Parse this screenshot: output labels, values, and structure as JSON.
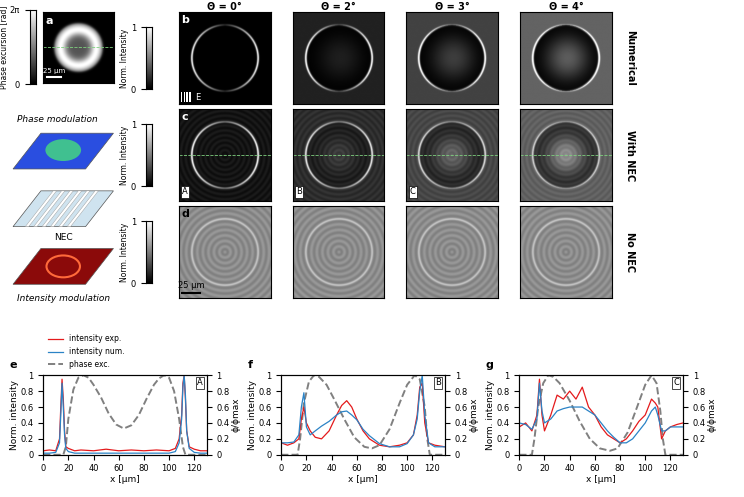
{
  "figure": {
    "panel_a": {
      "letter": "a",
      "colorbar_label": "Phase excursion [rad]",
      "colorbar_lim": [
        0,
        6.283
      ],
      "colorbar_ticks": [
        0,
        {
          "value": 6.283,
          "label": "2π"
        }
      ],
      "scale_bar": "25 µm"
    },
    "schematic": {
      "labels": [
        "Phase modulation",
        "NEC",
        "Intensity modulation"
      ]
    },
    "columns": [
      "Θ = 0°",
      "Θ = 2°",
      "Θ = 3°",
      "Θ = 4°"
    ],
    "rows": [
      {
        "letter": "b",
        "label": "Numerical",
        "grating_label": "E"
      },
      {
        "letter": "c",
        "label": "With NEC",
        "box_labels": [
          "A",
          "B",
          "C",
          null
        ]
      },
      {
        "letter": "d",
        "label": "No NEC",
        "scale_bar": "25 µm"
      }
    ],
    "intensity_colorbar": {
      "label": "Norm. Intensity",
      "lim": [
        0,
        1
      ],
      "ticks": [
        0,
        1
      ]
    }
  },
  "chart_data": [
    {
      "type": "line",
      "title": "e",
      "annotations": [
        "A"
      ],
      "x_label": "x [µm]",
      "y_label": "Norm. intensity",
      "y2_label": "ϕ/ϕmax",
      "xlim": [
        0,
        130
      ],
      "xticks": [
        0,
        20,
        40,
        60,
        80,
        100,
        120
      ],
      "ylim": [
        0,
        1
      ],
      "yticks": [
        0,
        0.2,
        0.4,
        0.6,
        0.8,
        1
      ],
      "y2lim": [
        0,
        1
      ],
      "y2ticks": [
        0,
        0.2,
        0.4,
        0.6,
        0.8,
        1
      ],
      "legend": "top",
      "series": [
        {
          "name": "intensity exp.",
          "color": "#e41a1c",
          "line_style": "solid",
          "x": [
            0,
            5,
            10,
            13,
            14,
            15,
            16,
            17,
            18,
            20,
            25,
            30,
            40,
            50,
            60,
            70,
            80,
            90,
            100,
            105,
            108,
            110,
            111,
            112,
            113,
            114,
            116,
            120,
            125,
            130
          ],
          "values": [
            0.05,
            0.06,
            0.05,
            0.2,
            0.6,
            0.95,
            0.7,
            0.3,
            0.1,
            0.08,
            0.05,
            0.06,
            0.05,
            0.07,
            0.05,
            0.06,
            0.05,
            0.06,
            0.05,
            0.08,
            0.2,
            0.5,
            0.9,
            1.0,
            0.7,
            0.3,
            0.1,
            0.07,
            0.05,
            0.05
          ]
        },
        {
          "name": "intensity num.",
          "color": "#2b83c6",
          "line_style": "solid",
          "x": [
            0,
            5,
            10,
            13,
            14,
            15,
            16,
            17,
            18,
            20,
            25,
            30,
            40,
            50,
            60,
            70,
            80,
            90,
            100,
            105,
            108,
            110,
            111,
            112,
            113,
            114,
            116,
            120,
            125,
            130
          ],
          "values": [
            0.02,
            0.02,
            0.03,
            0.15,
            0.5,
            0.9,
            0.6,
            0.25,
            0.08,
            0.04,
            0.02,
            0.02,
            0.02,
            0.02,
            0.02,
            0.02,
            0.02,
            0.02,
            0.02,
            0.04,
            0.15,
            0.45,
            0.85,
            1.0,
            0.75,
            0.3,
            0.08,
            0.03,
            0.02,
            0.02
          ]
        },
        {
          "name": "phase exc.",
          "color": "#808080",
          "line_style": "dashed",
          "axis": "y2",
          "x": [
            0,
            10,
            16,
            18,
            20,
            24,
            28,
            32,
            36,
            40,
            46,
            52,
            58,
            64,
            70,
            76,
            82,
            88,
            92,
            96,
            100,
            104,
            108,
            111,
            113,
            120,
            130
          ],
          "values": [
            0,
            0,
            0,
            0.1,
            0.45,
            0.82,
            0.97,
            1.0,
            0.97,
            0.88,
            0.72,
            0.52,
            0.38,
            0.33,
            0.37,
            0.5,
            0.7,
            0.88,
            0.96,
            1.0,
            0.97,
            0.8,
            0.45,
            0.1,
            0,
            0,
            0
          ]
        }
      ]
    },
    {
      "type": "line",
      "title": "f",
      "annotations": [
        "B"
      ],
      "x_label": "x [µm]",
      "y_label": "Norm. intensity",
      "y2_label": "ϕ/ϕmax",
      "xlim": [
        0,
        130
      ],
      "xticks": [
        0,
        20,
        40,
        60,
        80,
        100,
        120
      ],
      "ylim": [
        0,
        1
      ],
      "yticks": [
        0,
        0.2,
        0.4,
        0.6,
        0.8,
        1
      ],
      "y2lim": [
        0,
        1
      ],
      "y2ticks": [
        0,
        0.2,
        0.4,
        0.6,
        0.8,
        1
      ],
      "series": [
        {
          "color": "#e41a1c",
          "line_style": "solid",
          "x": [
            0,
            5,
            10,
            14,
            16,
            18,
            20,
            23,
            27,
            32,
            38,
            44,
            48,
            52,
            56,
            60,
            65,
            70,
            78,
            86,
            94,
            100,
            105,
            108,
            110,
            112,
            114,
            117,
            122,
            130
          ],
          "values": [
            0.15,
            0.12,
            0.15,
            0.2,
            0.45,
            0.6,
            0.4,
            0.3,
            0.22,
            0.2,
            0.3,
            0.5,
            0.62,
            0.68,
            0.6,
            0.45,
            0.3,
            0.2,
            0.12,
            0.1,
            0.12,
            0.15,
            0.25,
            0.5,
            0.85,
            0.9,
            0.4,
            0.15,
            0.12,
            0.1
          ]
        },
        {
          "color": "#2b83c6",
          "line_style": "solid",
          "x": [
            0,
            5,
            10,
            14,
            16,
            18,
            20,
            23,
            27,
            32,
            38,
            44,
            48,
            52,
            56,
            60,
            65,
            70,
            78,
            86,
            94,
            100,
            105,
            108,
            110,
            112,
            114,
            117,
            122,
            130
          ],
          "values": [
            0.15,
            0.15,
            0.16,
            0.25,
            0.6,
            0.78,
            0.35,
            0.25,
            0.3,
            0.36,
            0.42,
            0.5,
            0.54,
            0.55,
            0.5,
            0.44,
            0.32,
            0.24,
            0.14,
            0.1,
            0.1,
            0.14,
            0.25,
            0.45,
            0.8,
            1.0,
            0.5,
            0.15,
            0.1,
            0.1
          ]
        },
        {
          "color": "#808080",
          "line_style": "dashed",
          "axis": "y2",
          "x": [
            0,
            10,
            13,
            15,
            18,
            22,
            26,
            30,
            36,
            42,
            50,
            58,
            66,
            72,
            78,
            86,
            94,
            100,
            106,
            110,
            114,
            116,
            118,
            125,
            130
          ],
          "values": [
            0,
            0,
            0,
            0.2,
            0.65,
            0.92,
            1.0,
            0.98,
            0.88,
            0.7,
            0.45,
            0.22,
            0.1,
            0.08,
            0.12,
            0.32,
            0.65,
            0.88,
            1.0,
            0.95,
            0.6,
            0.2,
            0,
            0,
            0
          ]
        }
      ]
    },
    {
      "type": "line",
      "title": "g",
      "annotations": [
        "C"
      ],
      "x_label": "x [µm]",
      "y_label": "Norm. intensity",
      "y2_label": "ϕ/ϕmax",
      "xlim": [
        0,
        130
      ],
      "xticks": [
        0,
        20,
        40,
        60,
        80,
        100,
        120
      ],
      "ylim": [
        0,
        1
      ],
      "yticks": [
        0,
        0.2,
        0.4,
        0.6,
        0.8,
        1
      ],
      "y2lim": [
        0,
        1
      ],
      "y2ticks": [
        0,
        0.2,
        0.4,
        0.6,
        0.8,
        1
      ],
      "series": [
        {
          "color": "#e41a1c",
          "line_style": "solid",
          "x": [
            0,
            5,
            10,
            14,
            16,
            18,
            20,
            25,
            30,
            35,
            40,
            45,
            50,
            55,
            60,
            65,
            70,
            75,
            80,
            85,
            90,
            95,
            100,
            105,
            108,
            110,
            113,
            116,
            120,
            125,
            130
          ],
          "values": [
            0.35,
            0.4,
            0.3,
            0.5,
            0.95,
            0.5,
            0.3,
            0.5,
            0.75,
            0.7,
            0.8,
            0.7,
            0.85,
            0.6,
            0.5,
            0.35,
            0.25,
            0.2,
            0.15,
            0.2,
            0.3,
            0.42,
            0.5,
            0.7,
            0.65,
            0.6,
            0.2,
            0.3,
            0.35,
            0.38,
            0.4
          ]
        },
        {
          "color": "#2b83c6",
          "line_style": "solid",
          "x": [
            0,
            5,
            10,
            14,
            16,
            18,
            20,
            25,
            30,
            35,
            40,
            45,
            50,
            55,
            60,
            65,
            70,
            75,
            80,
            85,
            90,
            95,
            100,
            105,
            108,
            110,
            113,
            116,
            120,
            125,
            130
          ],
          "values": [
            0.4,
            0.38,
            0.32,
            0.45,
            0.9,
            0.55,
            0.4,
            0.45,
            0.55,
            0.58,
            0.6,
            0.6,
            0.6,
            0.55,
            0.5,
            0.4,
            0.3,
            0.22,
            0.15,
            0.15,
            0.2,
            0.3,
            0.4,
            0.55,
            0.6,
            0.5,
            0.3,
            0.3,
            0.35,
            0.35,
            0.35
          ]
        },
        {
          "color": "#808080",
          "line_style": "dashed",
          "axis": "y2",
          "x": [
            0,
            8,
            10,
            12,
            15,
            19,
            23,
            27,
            32,
            40,
            48,
            56,
            64,
            72,
            78,
            86,
            94,
            100,
            105,
            109,
            112,
            114,
            116,
            122,
            130
          ],
          "values": [
            0,
            0,
            0,
            0.2,
            0.6,
            0.9,
            1.0,
            0.98,
            0.9,
            0.68,
            0.42,
            0.2,
            0.08,
            0.05,
            0.08,
            0.28,
            0.62,
            0.88,
            1.0,
            0.9,
            0.55,
            0.2,
            0,
            0,
            0
          ]
        }
      ]
    }
  ]
}
